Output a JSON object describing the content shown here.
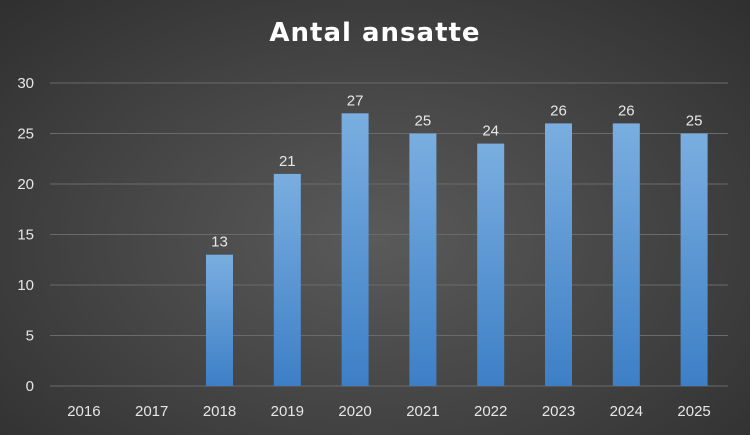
{
  "chart_data": {
    "type": "bar",
    "title": "Antal ansatte",
    "xlabel": "",
    "ylabel": "",
    "categories": [
      "2016",
      "2017",
      "2018",
      "2019",
      "2020",
      "2021",
      "2022",
      "2023",
      "2024",
      "2025"
    ],
    "values": [
      0,
      0,
      13,
      21,
      27,
      25,
      24,
      26,
      26,
      25
    ],
    "data_labels": [
      "",
      "",
      "13",
      "21",
      "27",
      "25",
      "24",
      "26",
      "26",
      "25"
    ],
    "ylim": [
      0,
      30
    ],
    "yticks": [
      "0",
      "5",
      "10",
      "15",
      "20",
      "25",
      "30"
    ],
    "grid": true,
    "legend": "none",
    "colors": {
      "bar_top": "#7aaee0",
      "bar_bottom": "#3d7fc6",
      "background": "#474747",
      "text": "#e6e6e6"
    }
  }
}
